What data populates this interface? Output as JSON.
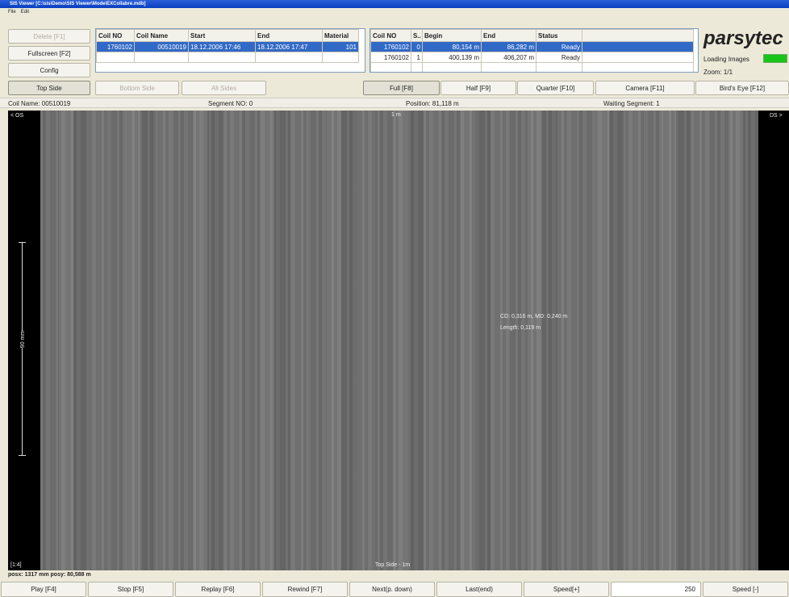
{
  "window": {
    "title": "SIS Viewer [C:\\sis\\Demo\\SIS Viewer\\Mode\\EXCollabre.mdb]",
    "menu": [
      "File",
      "Edit"
    ]
  },
  "left_buttons": [
    "Delete [F1]",
    "Fullscreen [F2]",
    "Config"
  ],
  "coil_table": {
    "columns": [
      "Coil NO",
      "Coil Name",
      "Start",
      "End",
      "Material"
    ],
    "rows": [
      [
        "1760102",
        "00510019",
        "18.12.2006 17:46",
        "18.12.2006 17:47",
        "101"
      ]
    ]
  },
  "segment_table": {
    "columns": [
      "Coil NO",
      "S..",
      "Begin",
      "End",
      "Status"
    ],
    "rows": [
      [
        "1760102",
        "0",
        "80,154 m",
        "86,282 m",
        "Ready"
      ],
      [
        "1760102",
        "1",
        "400,139 m",
        "406,207 m",
        "Ready"
      ]
    ]
  },
  "logo": "parsytec",
  "loading": "Loading Images",
  "zoom": "Zoom: 1/1",
  "side_buttons": [
    "Top Side",
    "Bottom Side",
    "All Sides"
  ],
  "view_buttons": [
    "Full [F8]",
    "Half [F9]",
    "Quarter [F10]",
    "Camera [F11]",
    "Bird's Eye [F12]"
  ],
  "info": {
    "coil_name": "Coil Name: 00510019",
    "segment": "Segment NO: 0",
    "position": "Position: 81,118 m",
    "waiting": "Waiting Segment: 1"
  },
  "image": {
    "left_label": "< OS",
    "right_label": "DS >",
    "top_label": "1 m",
    "scale_label": "90 mm",
    "zoom_label": "[1:4]",
    "bottom_label": "Top Side - 1m",
    "annotation": [
      "CD: 0,316 m, MD: 0,240 m",
      "Length: 0,119 m"
    ]
  },
  "status": "posx: 1317 mm posy: 80,588 m",
  "playback_buttons": [
    "Play [F4]",
    "Stop [F5]",
    "Replay [F6]",
    "Rewind [F7]",
    "Next(p. down)",
    "Last(end)",
    "Speed[+]",
    "250",
    "Speed [-]"
  ]
}
